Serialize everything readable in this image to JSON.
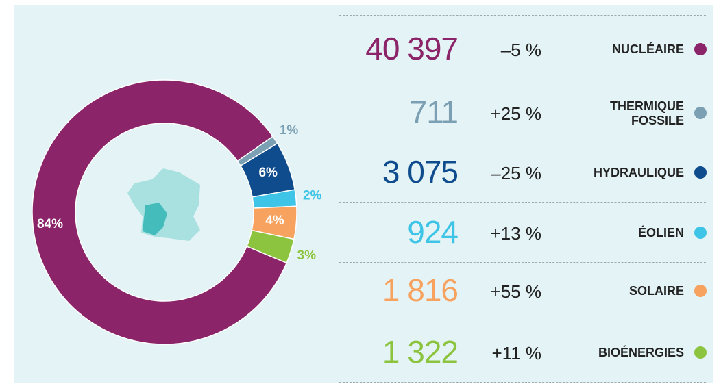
{
  "chart_data": {
    "type": "donut",
    "categories": [
      "NUCLÉAIRE",
      "THERMIQUE\nFOSSILE",
      "HYDRAULIQUE",
      "ÉOLIEN",
      "SOLAIRE",
      "BIOÉNERGIES"
    ],
    "values": [
      84,
      1,
      6,
      2,
      4,
      3
    ],
    "value_labels": [
      "84%",
      "1%",
      "6%",
      "2%",
      "4%",
      "3%"
    ],
    "colors": [
      "#8b2468",
      "#7b9fb3",
      "#0f4c8e",
      "#3ec4e6",
      "#f7a25e",
      "#8cc43f"
    ]
  },
  "table": {
    "rows": [
      [
        "40 397",
        "–5 %"
      ],
      [
        "711",
        "+25 %"
      ],
      [
        "3 075",
        "–25 %"
      ],
      [
        "924",
        "+13 %"
      ],
      [
        "1 816",
        "+55 %"
      ],
      [
        "1 322",
        "+11 %"
      ]
    ]
  }
}
